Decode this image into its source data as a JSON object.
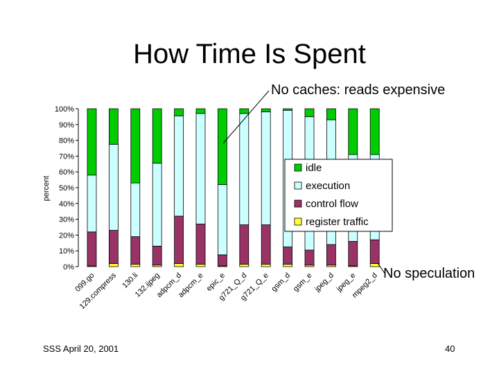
{
  "slide": {
    "title": "How Time Is Spent",
    "annotation_top": "No caches: reads expensive",
    "annotation_bottom": "No speculation",
    "footer_left": "SSS April 20, 2001",
    "page_number": "40"
  },
  "chart_data": {
    "type": "bar",
    "stacked": true,
    "title": "",
    "xlabel": "",
    "ylabel": "percent",
    "ylim": [
      0,
      100
    ],
    "yticks": [
      "0%",
      "10%",
      "20%",
      "30%",
      "40%",
      "50%",
      "60%",
      "70%",
      "80%",
      "90%",
      "100%"
    ],
    "grid": false,
    "legend_position": "right",
    "categories": [
      "099.go",
      "129.compress",
      "130.li",
      "132.ijpeg",
      "adpcm_d",
      "adpcm_e",
      "epic_e",
      "g721_Q_d",
      "g721_Q_e",
      "gsm_d",
      "gsm_e",
      "jpeg_d",
      "jpeg_e",
      "mpeg2_d"
    ],
    "series": [
      {
        "name": "register traffic",
        "color": "#ffff33",
        "values": [
          0.5,
          2,
          1.5,
          1,
          2,
          1.5,
          0.5,
          1.5,
          1.5,
          1.5,
          1,
          1,
          0.5,
          2
        ]
      },
      {
        "name": "control flow",
        "color": "#993366",
        "values": [
          21.5,
          21,
          17.5,
          12,
          30,
          25.5,
          7,
          25,
          25,
          11,
          9.5,
          13,
          15.5,
          15
        ]
      },
      {
        "name": "execution",
        "color": "#ccffff",
        "values": [
          36,
          54.5,
          34,
          52.5,
          63.5,
          70,
          44.5,
          70.5,
          71.5,
          86.5,
          84.5,
          79,
          55,
          54
        ]
      },
      {
        "name": "idle",
        "color": "#00cc00",
        "values": [
          42,
          22.5,
          47,
          34.5,
          4.5,
          3,
          48,
          3,
          2,
          1,
          5,
          7,
          29,
          29
        ]
      }
    ],
    "legend_order": [
      "idle",
      "execution",
      "control flow",
      "register traffic"
    ]
  }
}
